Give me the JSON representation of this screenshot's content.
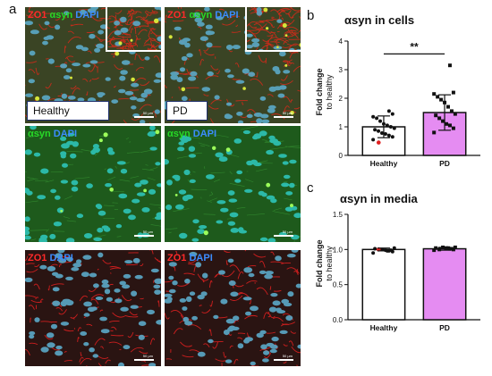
{
  "panels": {
    "a": "a",
    "b": "b",
    "c": "c"
  },
  "micro": {
    "stain_zo1": "ZO1",
    "stain_asyn": "αsyn",
    "stain_dapi": "DAPI",
    "group_healthy": "Healthy",
    "group_pd": "PD",
    "scale_text": "50 µm"
  },
  "colors": {
    "zo1": "#ff2a2a",
    "asyn": "#27d827",
    "dapi": "#3c8cff",
    "pd_bar": "#e58cf2"
  },
  "chart_data": [
    {
      "type": "bar",
      "title": "αsyn in cells",
      "ylabel": "Fold change",
      "ylabel2": "to healthy",
      "categories": [
        "Healthy",
        "PD"
      ],
      "values": [
        1.0,
        1.5
      ],
      "errors": [
        0.38,
        0.62
      ],
      "ylim": [
        0,
        4
      ],
      "yticks": [
        "0",
        "1",
        "2",
        "3",
        "4"
      ],
      "significance": "**",
      "points": {
        "Healthy": [
          0.55,
          0.65,
          0.7,
          0.75,
          0.78,
          0.85,
          0.9,
          0.95,
          1.0,
          1.05,
          1.1,
          1.2,
          1.3,
          1.35,
          1.45,
          1.55
        ],
        "PD": [
          0.8,
          0.95,
          1.05,
          1.1,
          1.2,
          1.3,
          1.4,
          1.45,
          1.55,
          1.7,
          1.85,
          1.95,
          2.05,
          2.15,
          2.2,
          3.15
        ]
      },
      "highlight": {
        "Healthy": [
          0.45
        ]
      }
    },
    {
      "type": "bar",
      "title": "αsyn in media",
      "ylabel": "Fold change",
      "ylabel2": "to healthy",
      "categories": [
        "Healthy",
        "PD"
      ],
      "values": [
        1.0,
        1.01
      ],
      "errors": [
        0.02,
        0.02
      ],
      "ylim": [
        0,
        1.5
      ],
      "yticks": [
        "0.0",
        "0.5",
        "1.0",
        "1.5"
      ],
      "points": {
        "Healthy": [
          0.95,
          0.97,
          0.98,
          0.99,
          1.0,
          1.0,
          1.01,
          1.02,
          0.99,
          0.98
        ],
        "PD": [
          0.99,
          1.0,
          1.01,
          1.02,
          1.03,
          1.0,
          1.02,
          1.03,
          1.01,
          1.02
        ]
      },
      "highlight": {
        "Healthy": [
          1.0
        ]
      }
    }
  ]
}
